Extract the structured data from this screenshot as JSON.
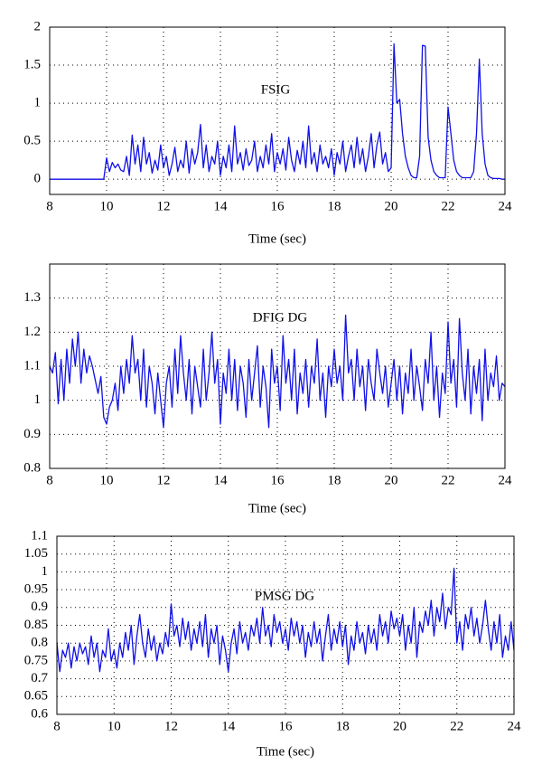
{
  "chart_data": [
    {
      "type": "line",
      "annotation": "FSIG",
      "xlabel": "Time (sec)",
      "color": "#1010e8",
      "grid": true,
      "xlim": [
        8,
        24
      ],
      "xticks": [
        8,
        10,
        12,
        14,
        16,
        18,
        20,
        22,
        24
      ],
      "ylim": [
        -0.2,
        2
      ],
      "yticks": [
        0,
        0.5,
        1,
        1.5,
        2
      ],
      "x": [
        8,
        8.1,
        8.2,
        8.3,
        8.4,
        8.5,
        8.6,
        8.7,
        8.8,
        8.9,
        9,
        9.1,
        9.2,
        9.3,
        9.4,
        9.5,
        9.6,
        9.7,
        9.8,
        9.9,
        10,
        10.1,
        10.2,
        10.3,
        10.4,
        10.5,
        10.6,
        10.7,
        10.8,
        10.9,
        11,
        11.1,
        11.2,
        11.3,
        11.4,
        11.5,
        11.6,
        11.7,
        11.8,
        11.9,
        12,
        12.1,
        12.2,
        12.3,
        12.4,
        12.5,
        12.6,
        12.7,
        12.8,
        12.9,
        13,
        13.1,
        13.2,
        13.3,
        13.4,
        13.5,
        13.6,
        13.7,
        13.8,
        13.9,
        14,
        14.1,
        14.2,
        14.3,
        14.4,
        14.5,
        14.6,
        14.7,
        14.8,
        14.9,
        15,
        15.1,
        15.2,
        15.3,
        15.4,
        15.5,
        15.6,
        15.7,
        15.8,
        15.9,
        16,
        16.1,
        16.2,
        16.3,
        16.4,
        16.5,
        16.6,
        16.7,
        16.8,
        16.9,
        17,
        17.1,
        17.2,
        17.3,
        17.4,
        17.5,
        17.6,
        17.7,
        17.8,
        17.9,
        18,
        18.1,
        18.2,
        18.3,
        18.4,
        18.5,
        18.6,
        18.7,
        18.8,
        18.9,
        19,
        19.1,
        19.2,
        19.3,
        19.4,
        19.5,
        19.6,
        19.7,
        19.8,
        19.9,
        20,
        20.1,
        20.2,
        20.3,
        20.4,
        20.5,
        20.6,
        20.7,
        20.8,
        20.9,
        21,
        21.1,
        21.2,
        21.3,
        21.4,
        21.5,
        21.6,
        21.7,
        21.8,
        21.9,
        22,
        22.1,
        22.2,
        22.3,
        22.4,
        22.5,
        22.6,
        22.7,
        22.8,
        22.9,
        23,
        23.1,
        23.2,
        23.3,
        23.4,
        23.5,
        23.6,
        23.7,
        23.8,
        23.9,
        24
      ],
      "values": [
        0,
        0,
        0,
        0,
        0,
        0,
        0,
        0,
        0,
        0,
        0,
        0,
        0,
        0,
        0,
        0,
        0,
        0,
        0,
        0,
        0.28,
        0.1,
        0.22,
        0.15,
        0.2,
        0.12,
        0.1,
        0.3,
        0.05,
        0.58,
        0.2,
        0.45,
        0.1,
        0.55,
        0.2,
        0.35,
        0.08,
        0.25,
        0.12,
        0.45,
        0.15,
        0.3,
        0.05,
        0.2,
        0.42,
        0.1,
        0.25,
        0.15,
        0.5,
        0.08,
        0.4,
        0.2,
        0.35,
        0.72,
        0.15,
        0.45,
        0.1,
        0.3,
        0.2,
        0.5,
        0.05,
        0.3,
        0.15,
        0.45,
        0.1,
        0.7,
        0.2,
        0.35,
        0.12,
        0.4,
        0.18,
        0.25,
        0.5,
        0.1,
        0.3,
        0.15,
        0.45,
        0.2,
        0.6,
        0.1,
        0.35,
        0.2,
        0.4,
        0.12,
        0.55,
        0.25,
        0.1,
        0.38,
        0.2,
        0.5,
        0.15,
        0.7,
        0.2,
        0.35,
        0.1,
        0.45,
        0.2,
        0.3,
        0.15,
        0.4,
        0.05,
        0.35,
        0.2,
        0.5,
        0.1,
        0.3,
        0.45,
        0.15,
        0.55,
        0.2,
        0.4,
        0.1,
        0.3,
        0.6,
        0.15,
        0.45,
        0.62,
        0.2,
        0.35,
        0.1,
        0.15,
        1.78,
        1.0,
        1.05,
        0.6,
        0.3,
        0.15,
        0.05,
        0.02,
        0.02,
        0.3,
        1.76,
        1.75,
        0.55,
        0.25,
        0.1,
        0.05,
        0.02,
        0.02,
        0.02,
        0.95,
        0.6,
        0.25,
        0.1,
        0.05,
        0.02,
        0.02,
        0.02,
        0.02,
        0.1,
        0.6,
        1.58,
        0.6,
        0.2,
        0.05,
        0.02,
        0.01,
        0.01,
        0.01,
        0,
        0
      ]
    },
    {
      "type": "line",
      "annotation": "DFIG DG",
      "xlabel": "Time (sec)",
      "color": "#1010e8",
      "grid": true,
      "xlim": [
        8,
        24
      ],
      "xticks": [
        8,
        10,
        12,
        14,
        16,
        18,
        20,
        22,
        24
      ],
      "ylim": [
        0.8,
        1.4
      ],
      "yticks": [
        0.8,
        0.9,
        1,
        1.1,
        1.2,
        1.3
      ],
      "x": [
        8,
        8.1,
        8.2,
        8.3,
        8.4,
        8.5,
        8.6,
        8.7,
        8.8,
        8.9,
        9,
        9.1,
        9.2,
        9.3,
        9.4,
        9.5,
        9.6,
        9.7,
        9.8,
        9.9,
        10,
        10.1,
        10.2,
        10.3,
        10.4,
        10.5,
        10.6,
        10.7,
        10.8,
        10.9,
        11,
        11.1,
        11.2,
        11.3,
        11.4,
        11.5,
        11.6,
        11.7,
        11.8,
        11.9,
        12,
        12.1,
        12.2,
        12.3,
        12.4,
        12.5,
        12.6,
        12.7,
        12.8,
        12.9,
        13,
        13.1,
        13.2,
        13.3,
        13.4,
        13.5,
        13.6,
        13.7,
        13.8,
        13.9,
        14,
        14.1,
        14.2,
        14.3,
        14.4,
        14.5,
        14.6,
        14.7,
        14.8,
        14.9,
        15,
        15.1,
        15.2,
        15.3,
        15.4,
        15.5,
        15.6,
        15.7,
        15.8,
        15.9,
        16,
        16.1,
        16.2,
        16.3,
        16.4,
        16.5,
        16.6,
        16.7,
        16.8,
        16.9,
        17,
        17.1,
        17.2,
        17.3,
        17.4,
        17.5,
        17.6,
        17.7,
        17.8,
        17.9,
        18,
        18.1,
        18.2,
        18.3,
        18.4,
        18.5,
        18.6,
        18.7,
        18.8,
        18.9,
        19,
        19.1,
        19.2,
        19.3,
        19.4,
        19.5,
        19.6,
        19.7,
        19.8,
        19.9,
        20,
        20.1,
        20.2,
        20.3,
        20.4,
        20.5,
        20.6,
        20.7,
        20.8,
        20.9,
        21,
        21.1,
        21.2,
        21.3,
        21.4,
        21.5,
        21.6,
        21.7,
        21.8,
        21.9,
        22,
        22.1,
        22.2,
        22.3,
        22.4,
        22.5,
        22.6,
        22.7,
        22.8,
        22.9,
        23,
        23.1,
        23.2,
        23.3,
        23.4,
        23.5,
        23.6,
        23.7,
        23.8,
        23.9,
        24
      ],
      "values": [
        1.1,
        1.08,
        1.14,
        0.99,
        1.12,
        1.0,
        1.15,
        1.05,
        1.18,
        1.1,
        1.2,
        1.05,
        1.15,
        1.08,
        1.13,
        1.1,
        1.06,
        1.02,
        1.07,
        0.95,
        0.93,
        0.98,
        1.0,
        1.05,
        0.97,
        1.1,
        1.02,
        1.12,
        1.05,
        1.19,
        1.08,
        1.12,
        1.0,
        1.15,
        0.98,
        1.1,
        1.05,
        0.96,
        1.08,
        1.0,
        0.92,
        1.05,
        1.1,
        0.98,
        1.15,
        1.02,
        1.19,
        1.08,
        1.0,
        1.12,
        0.96,
        1.1,
        1.04,
        0.98,
        1.15,
        1.0,
        1.08,
        1.2,
        1.05,
        1.12,
        0.93,
        1.08,
        1.02,
        1.15,
        1.0,
        1.12,
        0.97,
        1.1,
        1.05,
        0.95,
        1.12,
        1.0,
        1.08,
        1.16,
        0.98,
        1.1,
        1.04,
        0.92,
        1.15,
        1.05,
        1.1,
        0.97,
        1.19,
        1.05,
        1.12,
        1.0,
        1.15,
        0.96,
        1.08,
        1.02,
        1.12,
        0.98,
        1.1,
        1.05,
        1.18,
        1.0,
        1.08,
        0.95,
        1.1,
        1.04,
        1.15,
        1.05,
        1.1,
        1.0,
        1.25,
        1.08,
        1.12,
        1.0,
        1.15,
        1.04,
        1.1,
        0.97,
        1.12,
        1.05,
        1.0,
        1.15,
        1.08,
        1.02,
        1.1,
        0.98,
        1.05,
        1.12,
        1.0,
        1.1,
        0.96,
        1.08,
        1.02,
        1.15,
        1.0,
        1.1,
        1.04,
        0.97,
        1.12,
        1.05,
        1.2,
        1.0,
        1.1,
        0.95,
        1.08,
        1.02,
        1.23,
        1.05,
        1.12,
        0.98,
        1.24,
        1.08,
        1.0,
        1.15,
        0.96,
        1.1,
        1.02,
        1.12,
        0.94,
        1.15,
        1.0,
        1.08,
        1.04,
        1.13,
        1.0,
        1.05,
        1.04
      ]
    },
    {
      "type": "line",
      "annotation": "PMSG DG",
      "xlabel": "Time (sec)",
      "color": "#1010e8",
      "grid": true,
      "xlim": [
        8,
        24
      ],
      "xticks": [
        8,
        10,
        12,
        14,
        16,
        18,
        20,
        22,
        24
      ],
      "ylim": [
        0.6,
        1.1
      ],
      "yticks": [
        0.6,
        0.65,
        0.7,
        0.75,
        0.8,
        0.85,
        0.9,
        0.95,
        1,
        1.05,
        1.1
      ],
      "x": [
        8,
        8.1,
        8.2,
        8.3,
        8.4,
        8.5,
        8.6,
        8.7,
        8.8,
        8.9,
        9,
        9.1,
        9.2,
        9.3,
        9.4,
        9.5,
        9.6,
        9.7,
        9.8,
        9.9,
        10,
        10.1,
        10.2,
        10.3,
        10.4,
        10.5,
        10.6,
        10.7,
        10.8,
        10.9,
        11,
        11.1,
        11.2,
        11.3,
        11.4,
        11.5,
        11.6,
        11.7,
        11.8,
        11.9,
        12,
        12.1,
        12.2,
        12.3,
        12.4,
        12.5,
        12.6,
        12.7,
        12.8,
        12.9,
        13,
        13.1,
        13.2,
        13.3,
        13.4,
        13.5,
        13.6,
        13.7,
        13.8,
        13.9,
        14,
        14.1,
        14.2,
        14.3,
        14.4,
        14.5,
        14.6,
        14.7,
        14.8,
        14.9,
        15,
        15.1,
        15.2,
        15.3,
        15.4,
        15.5,
        15.6,
        15.7,
        15.8,
        15.9,
        16,
        16.1,
        16.2,
        16.3,
        16.4,
        16.5,
        16.6,
        16.7,
        16.8,
        16.9,
        17,
        17.1,
        17.2,
        17.3,
        17.4,
        17.5,
        17.6,
        17.7,
        17.8,
        17.9,
        18,
        18.1,
        18.2,
        18.3,
        18.4,
        18.5,
        18.6,
        18.7,
        18.8,
        18.9,
        19,
        19.1,
        19.2,
        19.3,
        19.4,
        19.5,
        19.6,
        19.7,
        19.8,
        19.9,
        20,
        20.1,
        20.2,
        20.3,
        20.4,
        20.5,
        20.6,
        20.7,
        20.8,
        20.9,
        21,
        21.1,
        21.2,
        21.3,
        21.4,
        21.5,
        21.6,
        21.7,
        21.8,
        21.9,
        22,
        22.1,
        22.2,
        22.3,
        22.4,
        22.5,
        22.6,
        22.7,
        22.8,
        22.9,
        23,
        23.1,
        23.2,
        23.3,
        23.4,
        23.5,
        23.6,
        23.7,
        23.8,
        23.9,
        24
      ],
      "values": [
        0.8,
        0.72,
        0.78,
        0.76,
        0.8,
        0.73,
        0.79,
        0.75,
        0.8,
        0.77,
        0.79,
        0.74,
        0.82,
        0.76,
        0.8,
        0.72,
        0.78,
        0.76,
        0.84,
        0.75,
        0.78,
        0.73,
        0.8,
        0.76,
        0.83,
        0.78,
        0.85,
        0.74,
        0.82,
        0.88,
        0.8,
        0.76,
        0.84,
        0.78,
        0.82,
        0.75,
        0.8,
        0.77,
        0.83,
        0.79,
        0.91,
        0.82,
        0.85,
        0.79,
        0.87,
        0.81,
        0.86,
        0.78,
        0.84,
        0.8,
        0.86,
        0.79,
        0.88,
        0.76,
        0.84,
        0.8,
        0.85,
        0.74,
        0.82,
        0.78,
        0.72,
        0.8,
        0.84,
        0.77,
        0.86,
        0.8,
        0.83,
        0.78,
        0.85,
        0.82,
        0.87,
        0.8,
        0.9,
        0.82,
        0.85,
        0.79,
        0.88,
        0.83,
        0.86,
        0.8,
        0.84,
        0.78,
        0.87,
        0.82,
        0.86,
        0.8,
        0.85,
        0.76,
        0.83,
        0.79,
        0.86,
        0.8,
        0.84,
        0.75,
        0.82,
        0.88,
        0.78,
        0.84,
        0.8,
        0.86,
        0.79,
        0.85,
        0.74,
        0.82,
        0.78,
        0.86,
        0.8,
        0.83,
        0.77,
        0.85,
        0.8,
        0.84,
        0.78,
        0.88,
        0.82,
        0.86,
        0.8,
        0.89,
        0.84,
        0.87,
        0.82,
        0.88,
        0.78,
        0.85,
        0.8,
        0.9,
        0.76,
        0.86,
        0.83,
        0.89,
        0.85,
        0.92,
        0.82,
        0.9,
        0.86,
        0.94,
        0.84,
        0.9,
        0.88,
        1.01,
        0.8,
        0.86,
        0.78,
        0.88,
        0.84,
        0.9,
        0.82,
        0.87,
        0.8,
        0.85,
        0.92,
        0.84,
        0.78,
        0.86,
        0.8,
        0.88,
        0.76,
        0.82,
        0.78,
        0.86,
        0.78
      ]
    }
  ]
}
